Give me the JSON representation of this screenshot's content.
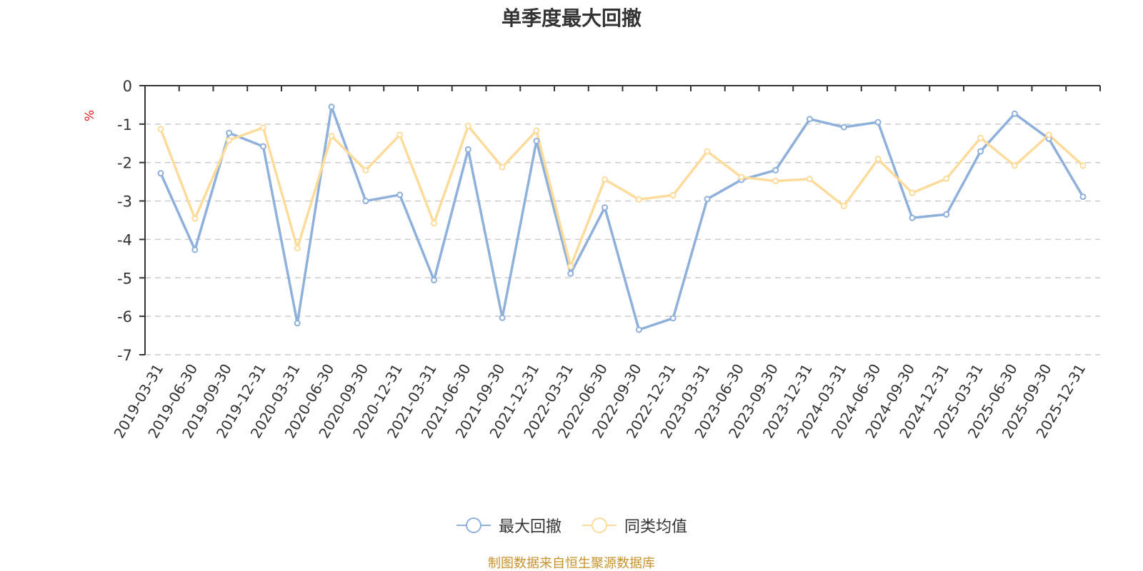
{
  "chart_data": {
    "type": "line",
    "title": "单季度最大回撤",
    "ylabel": "%",
    "ylim": [
      -7,
      0
    ],
    "yticks": [
      0,
      -1,
      -2,
      -3,
      -4,
      -5,
      -6,
      -7
    ],
    "grid": true,
    "legend_position": "bottom",
    "categories": [
      "2019-03-31",
      "2019-06-30",
      "2019-09-30",
      "2019-12-31",
      "2020-03-31",
      "2020-06-30",
      "2020-09-30",
      "2020-12-31",
      "2021-03-31",
      "2021-06-30",
      "2021-09-30",
      "2021-12-31",
      "2022-03-31",
      "2022-06-30",
      "2022-09-30",
      "2022-12-31",
      "2023-03-31",
      "2023-06-30",
      "2023-09-30",
      "2023-12-31",
      "2024-03-31",
      "2024-06-30",
      "2024-09-30",
      "2024-12-31",
      "2025-03-31",
      "2025-06-30",
      "2025-09-30",
      "2025-12-31"
    ],
    "series": [
      {
        "name": "最大回撤",
        "color": "#8eb0db",
        "values": [
          -2.28,
          -4.27,
          -1.23,
          -1.58,
          -6.18,
          -0.55,
          -3.0,
          -2.84,
          -5.06,
          -1.66,
          -6.04,
          -1.44,
          -4.89,
          -3.17,
          -6.35,
          -6.05,
          -2.95,
          -2.45,
          -2.2,
          -0.87,
          -1.08,
          -0.95,
          -3.44,
          -3.35,
          -1.71,
          -0.73,
          -1.38,
          -2.89
        ]
      },
      {
        "name": "同类均值",
        "color": "#fddb9b",
        "values": [
          -1.13,
          -3.46,
          -1.42,
          -1.09,
          -4.23,
          -1.31,
          -2.2,
          -1.28,
          -3.58,
          -1.05,
          -2.12,
          -1.17,
          -4.7,
          -2.44,
          -2.96,
          -2.85,
          -1.71,
          -2.38,
          -2.48,
          -2.43,
          -3.13,
          -1.91,
          -2.79,
          -2.42,
          -1.36,
          -2.08,
          -1.28,
          -2.08
        ]
      }
    ]
  },
  "source_note": "制图数据来自恒生聚源数据库",
  "colors": {
    "axis": "#333333",
    "grid": "#cccccc",
    "tick_text": "#333333",
    "unit_label": "#e02020",
    "source_note": "#c7922a"
  }
}
